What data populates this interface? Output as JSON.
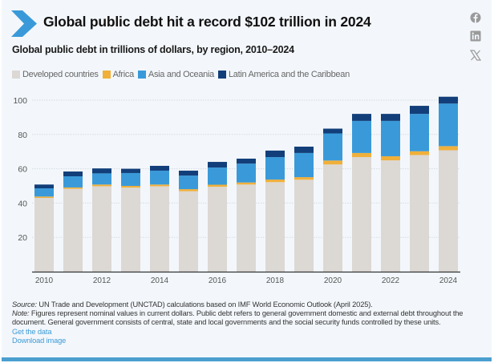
{
  "header": {
    "title": "Global public debt hit a record $102 trillion in 2024",
    "subtitle": "Global public debt in trillions of dollars, by region, 2010–2024",
    "icon": "chevron-right-icon"
  },
  "social": [
    {
      "name": "facebook-icon",
      "label": "Facebook"
    },
    {
      "name": "linkedin-icon",
      "label": "LinkedIn"
    },
    {
      "name": "x-icon",
      "label": "X"
    }
  ],
  "colors": {
    "developed": "#dcd8d4",
    "africa": "#f0b03a",
    "asia": "#3a9ad9",
    "latin": "#123f7a",
    "accent": "#3d9ad6"
  },
  "chart_data": {
    "type": "bar",
    "stacked": true,
    "title": "Global public debt hit a record $102 trillion in 2024",
    "subtitle": "Global public debt in trillions of dollars, by region, 2010–2024",
    "xlabel": "",
    "ylabel": "",
    "ylim": [
      0,
      105
    ],
    "yticks": [
      20,
      40,
      60,
      80,
      100
    ],
    "grid": true,
    "legend_position": "top-left",
    "categories": [
      "2010",
      "2011",
      "2012",
      "2013",
      "2014",
      "2015",
      "2016",
      "2017",
      "2018",
      "2019",
      "2020",
      "2021",
      "2022",
      "2023",
      "2024"
    ],
    "xtick_labels": [
      "2010",
      "",
      "2012",
      "",
      "2014",
      "",
      "2016",
      "",
      "2018",
      "",
      "2020",
      "",
      "2022",
      "",
      "2024"
    ],
    "series": [
      {
        "name": "Developed countries",
        "key": "developed",
        "values": [
          43.0,
          48.3,
          49.8,
          49.0,
          49.8,
          46.9,
          49.5,
          50.8,
          52.2,
          53.6,
          62.5,
          66.8,
          64.9,
          68.0,
          70.8
        ]
      },
      {
        "name": "Africa",
        "key": "africa",
        "values": [
          0.8,
          0.8,
          1.0,
          1.0,
          1.0,
          1.2,
          1.2,
          1.2,
          1.5,
          1.5,
          2.3,
          2.4,
          2.4,
          2.2,
          2.4
        ]
      },
      {
        "name": "Asia and Oceania",
        "key": "asia",
        "values": [
          4.8,
          6.5,
          6.5,
          7.5,
          8.1,
          7.9,
          10.0,
          11.0,
          13.1,
          14.1,
          15.8,
          18.7,
          20.6,
          21.8,
          24.8
        ]
      },
      {
        "name": "Latin America and the Caribbean",
        "key": "latin",
        "values": [
          2.2,
          2.8,
          2.9,
          2.5,
          2.8,
          2.9,
          3.3,
          2.9,
          3.8,
          3.7,
          2.8,
          4.1,
          4.1,
          4.7,
          4.0
        ]
      }
    ]
  },
  "footer": {
    "source_label": "Source:",
    "source_text": " UN Trade and Development (UNCTAD) calculations based on IMF World Economic Outlook (April 2025).",
    "note_label": "Note:",
    "note_text": " Figures represent nominal values in current dollars. Public debt refers to general government domestic and external debt throughout the document. General government consists of central, state and local governments and the social security funds controlled by these units.",
    "get_data_link": "Get the data",
    "download_link": "Download image"
  }
}
